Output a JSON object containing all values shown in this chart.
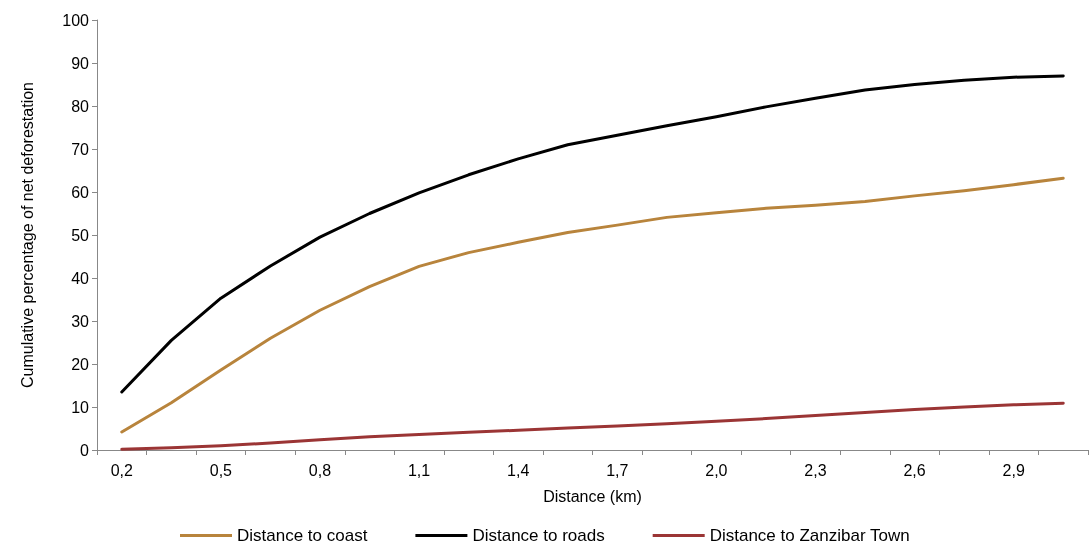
{
  "chart_data": {
    "type": "line",
    "xlabel": "Distance (km)",
    "ylabel": "Cumulative percentage of net deforestation",
    "categories": [
      "0,2",
      null,
      "0,5",
      null,
      "0,8",
      null,
      "1,1",
      null,
      "1,4",
      null,
      "1,7",
      null,
      "2,0",
      null,
      "2,3",
      null,
      "2,6",
      null,
      "2,9",
      null
    ],
    "series": [
      {
        "name": "Distance to coast",
        "color": "#b8843c",
        "values": [
          4.2,
          11,
          18.6,
          26,
          32.5,
          38,
          42.7,
          45.9,
          48.3,
          50.6,
          52.3,
          54.1,
          55.2,
          56.2,
          56.9,
          57.8,
          59.1,
          60.3,
          61.7,
          63.2
        ]
      },
      {
        "name": "Distance to roads",
        "color": "#000000",
        "values": [
          13.5,
          25.5,
          35.3,
          42.8,
          49.5,
          55,
          59.8,
          64,
          67.7,
          71,
          73.2,
          75.4,
          77.5,
          79.8,
          81.8,
          83.7,
          85,
          86,
          86.7,
          87
        ]
      },
      {
        "name": "Distance to Zanzibar Town",
        "color": "#9b3535",
        "values": [
          0.2,
          0.5,
          1.0,
          1.6,
          2.4,
          3.1,
          3.6,
          4.1,
          4.6,
          5.1,
          5.6,
          6.1,
          6.7,
          7.3,
          8.0,
          8.7,
          9.4,
          10.0,
          10.5,
          10.9
        ]
      }
    ],
    "ylim": [
      0,
      100
    ],
    "yticks": [
      0,
      10,
      20,
      30,
      40,
      50,
      60,
      70,
      80,
      90,
      100
    ],
    "grid": false,
    "legend": "bottom",
    "marker": "none",
    "line_style": "solid"
  }
}
